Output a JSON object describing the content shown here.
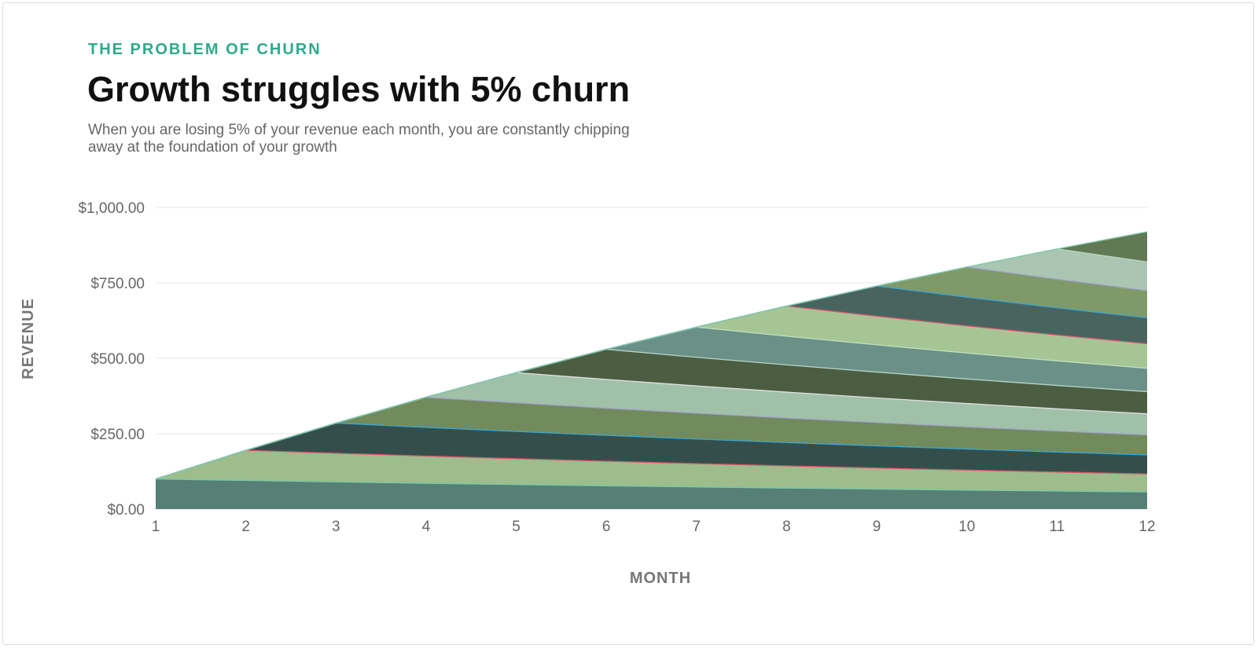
{
  "header": {
    "eyebrow": "THE PROBLEM OF CHURN",
    "title": "Growth struggles with 5% churn",
    "subtitle": "When you are losing 5% of your revenue each month, you are constantly chipping away at the foundation of your growth"
  },
  "chart_data": {
    "type": "area",
    "stacked": true,
    "xlabel": "MONTH",
    "ylabel": "REVENUE",
    "x": [
      1,
      2,
      3,
      4,
      5,
      6,
      7,
      8,
      9,
      10,
      11,
      12
    ],
    "xlim": [
      1,
      12
    ],
    "ylim": [
      0,
      1000
    ],
    "yticks": [
      0,
      250,
      500,
      750,
      1000
    ],
    "ytick_labels": [
      "$0.00",
      "$250.00",
      "$500.00",
      "$750.00",
      "$1,000.00"
    ],
    "grid": true,
    "legend": "none",
    "cohort_start_value": 100,
    "monthly_churn_rate": 0.05,
    "series_colors": [
      "#567f76",
      "#9dbd8c",
      "#344f4b",
      "#728b5c",
      "#a0c0a8",
      "#4b5e42",
      "#6a9088",
      "#a6c595",
      "#49645f",
      "#7f9a68",
      "#aac6b2",
      "#617954"
    ],
    "boundary_colors": [
      "#7ac9a8",
      "#d6566e",
      "#3ba7d9",
      "#a3a3cf",
      "#e0e0e0",
      "#b8d4c6",
      "#c0e0c0",
      "#d6566e",
      "#3ba7d9",
      "#a3a3cf",
      "#b8d4c6",
      "#7ac9a8"
    ]
  }
}
